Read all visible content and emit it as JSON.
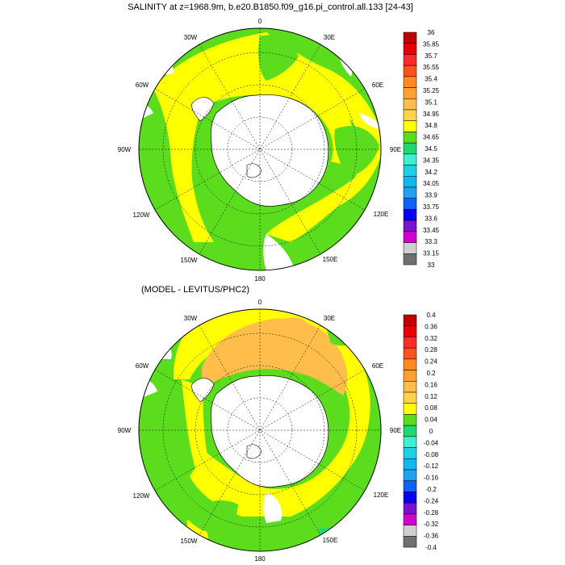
{
  "panels": [
    {
      "title": "SALINITY at z=1968.9m, b.e20.B1850.f09_g16.pi_control.all.133 [24-43]",
      "colorbar": {
        "labels": [
          "36",
          "35.85",
          "35.7",
          "35.55",
          "35.4",
          "35.25",
          "35.1",
          "34.95",
          "34.8",
          "34.65",
          "34.5",
          "34.35",
          "34.2",
          "34.05",
          "33.9",
          "33.75",
          "33.6",
          "33.45",
          "33.3",
          "33.15",
          "33"
        ],
        "colors": [
          "#c00000",
          "#e80000",
          "#ff2a2a",
          "#ff5020",
          "#ff8a20",
          "#ffa030",
          "#ffbd4a",
          "#ffd34a",
          "#ffff00",
          "#5bdc1c",
          "#20d870",
          "#3ff0d0",
          "#1ecfe8",
          "#10b8f0",
          "#1fa0f0",
          "#1060ff",
          "#0000f0",
          "#7a10d0",
          "#d000d0",
          "#d0d0d0",
          "#707070"
        ]
      },
      "lon_labels": [
        "0",
        "30E",
        "60E",
        "90E",
        "120E",
        "150E",
        "180",
        "150W",
        "120W",
        "90W",
        "60W",
        "30W"
      ]
    },
    {
      "title": "(MODEL - LEVITUS/PHC2)",
      "colorbar": {
        "labels": [
          "0.4",
          "0.36",
          "0.32",
          "0.28",
          "0.24",
          "0.2",
          "0.16",
          "0.12",
          "0.08",
          "0.04",
          "0",
          "-0.04",
          "-0.08",
          "-0.12",
          "-0.16",
          "-0.2",
          "-0.24",
          "-0.28",
          "-0.32",
          "-0.36",
          "-0.4"
        ],
        "colors": [
          "#c00000",
          "#e80000",
          "#ff2a2a",
          "#ff5020",
          "#ff8a20",
          "#ffa030",
          "#ffbd4a",
          "#ffd34a",
          "#ffff00",
          "#5bdc1c",
          "#20d870",
          "#3ff0d0",
          "#1ecfe8",
          "#10b8f0",
          "#1fa0f0",
          "#1060ff",
          "#0000f0",
          "#7a10d0",
          "#d000d0",
          "#d0d0d0",
          "#707070"
        ]
      },
      "lon_labels": [
        "0",
        "30E",
        "60E",
        "90E",
        "120E",
        "150E",
        "180",
        "150W",
        "120W",
        "90W",
        "60W",
        "30W"
      ]
    }
  ]
}
